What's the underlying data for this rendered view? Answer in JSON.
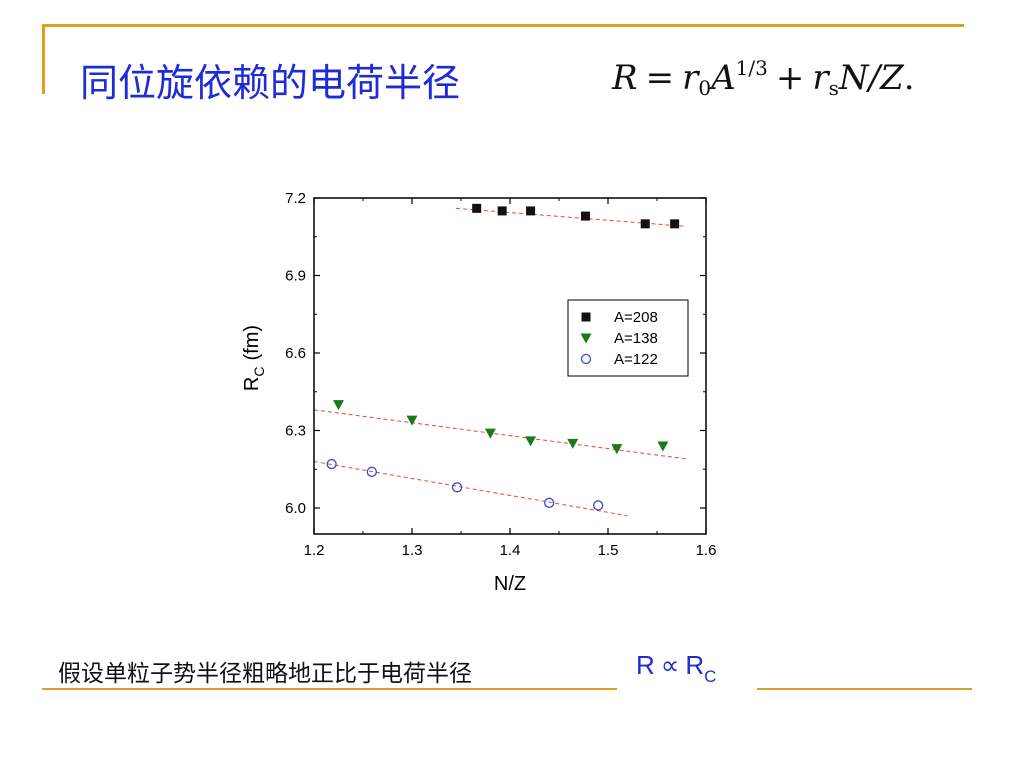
{
  "slide": {
    "title": "同位旋依赖的电荷半径",
    "formula": {
      "lhs": "R",
      "eq": "=",
      "r0_base": "r",
      "r0_sub": "0",
      "A": "A",
      "A_exp": "1/3",
      "plus": "+",
      "rs_base": "r",
      "rs_sub": "s",
      "ratio": "N/Z",
      "end": "."
    },
    "bottom_text": "假设单粒子势半径粗略地正比于电荷半径",
    "prop": {
      "R": "R",
      "symbol": "∝",
      "Rc_base": "R",
      "Rc_sub": "C"
    }
  },
  "colors": {
    "title": "#1e2bd6",
    "accent_rule": "#e0a01e",
    "fit_line": "#e8453c",
    "series_208": "#111111",
    "series_138": "#1a7a1a",
    "series_122": "#3a48d8"
  },
  "chart_data": {
    "type": "scatter",
    "xlabel": "N/Z",
    "ylabel_base": "R",
    "ylabel_sub": "C",
    "ylabel_unit": "(fm)",
    "xlim": [
      1.2,
      1.6
    ],
    "ylim": [
      5.9,
      7.2
    ],
    "xticks": [
      1.2,
      1.3,
      1.4,
      1.5,
      1.6
    ],
    "yticks": [
      6.0,
      6.3,
      6.6,
      6.9,
      7.2
    ],
    "grid": false,
    "legend_position": "right-middle",
    "series": [
      {
        "name": "A=208",
        "marker": "filled-square",
        "color": "#111111",
        "points": [
          [
            1.366,
            7.16
          ],
          [
            1.392,
            7.15
          ],
          [
            1.421,
            7.15
          ],
          [
            1.477,
            7.13
          ],
          [
            1.538,
            7.1
          ],
          [
            1.568,
            7.1
          ]
        ],
        "fit": [
          [
            1.345,
            7.16
          ],
          [
            1.58,
            7.09
          ]
        ]
      },
      {
        "name": "A=138",
        "marker": "filled-triangle-down",
        "color": "#1a7a1a",
        "points": [
          [
            1.225,
            6.4
          ],
          [
            1.3,
            6.34
          ],
          [
            1.38,
            6.29
          ],
          [
            1.421,
            6.26
          ],
          [
            1.464,
            6.25
          ],
          [
            1.509,
            6.23
          ],
          [
            1.556,
            6.24
          ]
        ],
        "fit": [
          [
            1.2,
            6.38
          ],
          [
            1.58,
            6.19
          ]
        ]
      },
      {
        "name": "A=122",
        "marker": "open-circle",
        "color": "#3a48d8",
        "points": [
          [
            1.218,
            6.17
          ],
          [
            1.259,
            6.14
          ],
          [
            1.346,
            6.08
          ],
          [
            1.44,
            6.02
          ],
          [
            1.49,
            6.01
          ]
        ],
        "fit": [
          [
            1.2,
            6.18
          ],
          [
            1.52,
            5.97
          ]
        ]
      }
    ]
  }
}
